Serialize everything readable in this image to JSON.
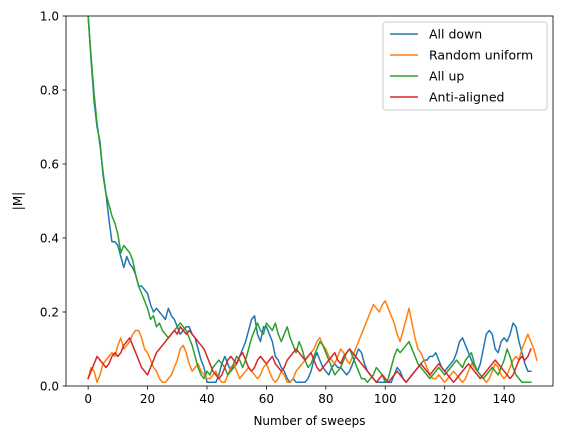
{
  "chart_data": {
    "type": "line",
    "xlabel": "Number of sweeps",
    "ylabel": "|M|",
    "xlim": [
      -7.45,
      156.45
    ],
    "ylim": [
      0.0,
      1.0
    ],
    "xticks": [
      0,
      20,
      40,
      60,
      80,
      100,
      120,
      140
    ],
    "yticks": [
      0.0,
      0.2,
      0.4,
      0.6,
      0.8,
      1.0
    ],
    "xtick_labels": [
      "0",
      "20",
      "40",
      "60",
      "80",
      "100",
      "120",
      "140"
    ],
    "ytick_labels": [
      "0.0",
      "0.2",
      "0.4",
      "0.6",
      "0.8",
      "1.0"
    ],
    "grid": false,
    "legend_position": "top-right",
    "series": [
      {
        "name": "All down",
        "color": "#1f77b4",
        "values": [
          1.0,
          0.88,
          0.77,
          0.7,
          0.66,
          0.57,
          0.52,
          0.45,
          0.39,
          0.39,
          0.38,
          0.35,
          0.32,
          0.35,
          0.33,
          0.32,
          0.3,
          0.27,
          0.27,
          0.26,
          0.25,
          0.22,
          0.2,
          0.21,
          0.2,
          0.19,
          0.18,
          0.21,
          0.19,
          0.18,
          0.16,
          0.14,
          0.15,
          0.16,
          0.16,
          0.14,
          0.13,
          0.1,
          0.07,
          0.05,
          0.01,
          0.01,
          0.01,
          0.01,
          0.03,
          0.06,
          0.08,
          0.06,
          0.04,
          0.05,
          0.06,
          0.08,
          0.1,
          0.12,
          0.15,
          0.18,
          0.19,
          0.14,
          0.12,
          0.16,
          0.16,
          0.14,
          0.12,
          0.08,
          0.07,
          0.05,
          0.04,
          0.02,
          0.01,
          0.02,
          0.01,
          0.01,
          0.01,
          0.01,
          0.02,
          0.04,
          0.07,
          0.09,
          0.07,
          0.05,
          0.04,
          0.03,
          0.05,
          0.06,
          0.05,
          0.05,
          0.04,
          0.03,
          0.04,
          0.06,
          0.08,
          0.1,
          0.09,
          0.06,
          0.04,
          0.03,
          0.02,
          0.01,
          0.01,
          0.01,
          0.01,
          0.01,
          0.01,
          0.03,
          0.05,
          0.04,
          0.02,
          0.01,
          0.02,
          0.03,
          0.04,
          0.05,
          0.06,
          0.07,
          0.07,
          0.08,
          0.08,
          0.09,
          0.07,
          0.05,
          0.04,
          0.05,
          0.06,
          0.07,
          0.09,
          0.12,
          0.13,
          0.11,
          0.09,
          0.07,
          0.05,
          0.04,
          0.06,
          0.1,
          0.14,
          0.15,
          0.14,
          0.1,
          0.09,
          0.12,
          0.13,
          0.12,
          0.14,
          0.17,
          0.16,
          0.12,
          0.09,
          0.06,
          0.04,
          0.04
        ]
      },
      {
        "name": "Random uniform",
        "color": "#ff7f0e",
        "values": [
          0.02,
          0.05,
          0.04,
          0.01,
          0.03,
          0.06,
          0.07,
          0.08,
          0.09,
          0.08,
          0.11,
          0.13,
          0.1,
          0.11,
          0.12,
          0.14,
          0.15,
          0.15,
          0.13,
          0.1,
          0.09,
          0.07,
          0.05,
          0.04,
          0.02,
          0.01,
          0.01,
          0.02,
          0.03,
          0.05,
          0.07,
          0.1,
          0.11,
          0.09,
          0.06,
          0.04,
          0.05,
          0.06,
          0.04,
          0.03,
          0.02,
          0.02,
          0.03,
          0.04,
          0.02,
          0.01,
          0.01,
          0.03,
          0.05,
          0.06,
          0.04,
          0.02,
          0.03,
          0.04,
          0.05,
          0.04,
          0.03,
          0.02,
          0.03,
          0.05,
          0.06,
          0.04,
          0.02,
          0.01,
          0.02,
          0.04,
          0.03,
          0.01,
          0.01,
          0.02,
          0.04,
          0.05,
          0.06,
          0.07,
          0.08,
          0.09,
          0.1,
          0.12,
          0.13,
          0.11,
          0.1,
          0.08,
          0.07,
          0.06,
          0.08,
          0.1,
          0.09,
          0.07,
          0.06,
          0.08,
          0.1,
          0.12,
          0.14,
          0.16,
          0.18,
          0.2,
          0.22,
          0.21,
          0.2,
          0.22,
          0.23,
          0.21,
          0.19,
          0.17,
          0.14,
          0.12,
          0.15,
          0.18,
          0.21,
          0.17,
          0.13,
          0.1,
          0.09,
          0.07,
          0.05,
          0.03,
          0.02,
          0.02,
          0.03,
          0.02,
          0.01,
          0.02,
          0.03,
          0.04,
          0.03,
          0.02,
          0.01,
          0.02,
          0.04,
          0.06,
          0.05,
          0.04,
          0.03,
          0.02,
          0.01,
          0.02,
          0.04,
          0.06,
          0.05,
          0.03,
          0.02,
          0.03,
          0.05,
          0.07,
          0.08,
          0.07,
          0.1,
          0.12,
          0.14,
          0.12,
          0.1,
          0.07
        ]
      },
      {
        "name": "All up",
        "color": "#2ca02c",
        "values": [
          1.0,
          0.89,
          0.79,
          0.71,
          0.65,
          0.58,
          0.52,
          0.49,
          0.46,
          0.44,
          0.41,
          0.36,
          0.38,
          0.37,
          0.36,
          0.34,
          0.3,
          0.27,
          0.25,
          0.23,
          0.21,
          0.18,
          0.19,
          0.16,
          0.17,
          0.15,
          0.14,
          0.13,
          0.14,
          0.15,
          0.16,
          0.17,
          0.16,
          0.15,
          0.13,
          0.11,
          0.08,
          0.05,
          0.03,
          0.02,
          0.04,
          0.03,
          0.05,
          0.06,
          0.07,
          0.06,
          0.05,
          0.03,
          0.04,
          0.06,
          0.08,
          0.07,
          0.05,
          0.07,
          0.1,
          0.13,
          0.15,
          0.17,
          0.15,
          0.14,
          0.17,
          0.16,
          0.15,
          0.17,
          0.14,
          0.12,
          0.14,
          0.16,
          0.13,
          0.11,
          0.09,
          0.12,
          0.1,
          0.07,
          0.05,
          0.06,
          0.08,
          0.1,
          0.12,
          0.11,
          0.09,
          0.07,
          0.05,
          0.03,
          0.04,
          0.05,
          0.07,
          0.09,
          0.1,
          0.08,
          0.06,
          0.04,
          0.02,
          0.02,
          0.01,
          0.02,
          0.03,
          0.05,
          0.04,
          0.03,
          0.01,
          0.02,
          0.05,
          0.08,
          0.1,
          0.09,
          0.1,
          0.11,
          0.12,
          0.1,
          0.08,
          0.06,
          0.05,
          0.04,
          0.03,
          0.02,
          0.03,
          0.04,
          0.05,
          0.04,
          0.03,
          0.04,
          0.05,
          0.06,
          0.07,
          0.06,
          0.05,
          0.07,
          0.08,
          0.09,
          0.06,
          0.04,
          0.03,
          0.02,
          0.03,
          0.04,
          0.05,
          0.04,
          0.03,
          0.05,
          0.07,
          0.1,
          0.08,
          0.05,
          0.03,
          0.02,
          0.01,
          0.01,
          0.01,
          0.01
        ]
      },
      {
        "name": "Anti-aligned",
        "color": "#d62728",
        "values": [
          0.02,
          0.04,
          0.06,
          0.08,
          0.07,
          0.06,
          0.05,
          0.06,
          0.08,
          0.09,
          0.08,
          0.09,
          0.11,
          0.12,
          0.13,
          0.11,
          0.09,
          0.07,
          0.05,
          0.04,
          0.03,
          0.05,
          0.07,
          0.09,
          0.1,
          0.11,
          0.12,
          0.13,
          0.14,
          0.15,
          0.14,
          0.16,
          0.15,
          0.14,
          0.15,
          0.14,
          0.13,
          0.12,
          0.11,
          0.1,
          0.08,
          0.06,
          0.04,
          0.03,
          0.02,
          0.03,
          0.05,
          0.07,
          0.08,
          0.07,
          0.06,
          0.08,
          0.09,
          0.07,
          0.05,
          0.04,
          0.05,
          0.07,
          0.08,
          0.07,
          0.06,
          0.07,
          0.08,
          0.06,
          0.05,
          0.04,
          0.05,
          0.07,
          0.08,
          0.09,
          0.1,
          0.09,
          0.08,
          0.07,
          0.08,
          0.09,
          0.07,
          0.05,
          0.04,
          0.05,
          0.06,
          0.07,
          0.08,
          0.09,
          0.07,
          0.06,
          0.08,
          0.09,
          0.1,
          0.09,
          0.08,
          0.07,
          0.06,
          0.05,
          0.04,
          0.03,
          0.02,
          0.01,
          0.02,
          0.03,
          0.02,
          0.01,
          0.02,
          0.03,
          0.04,
          0.03,
          0.02,
          0.01,
          0.02,
          0.03,
          0.04,
          0.05,
          0.06,
          0.05,
          0.04,
          0.03,
          0.04,
          0.05,
          0.06,
          0.05,
          0.04,
          0.03,
          0.02,
          0.01,
          0.02,
          0.03,
          0.04,
          0.05,
          0.06,
          0.05,
          0.04,
          0.03,
          0.02,
          0.03,
          0.04,
          0.05,
          0.06,
          0.07,
          0.06,
          0.05,
          0.04,
          0.03,
          0.02,
          0.03,
          0.05,
          0.07,
          0.08,
          0.07,
          0.08,
          0.1
        ]
      }
    ]
  }
}
